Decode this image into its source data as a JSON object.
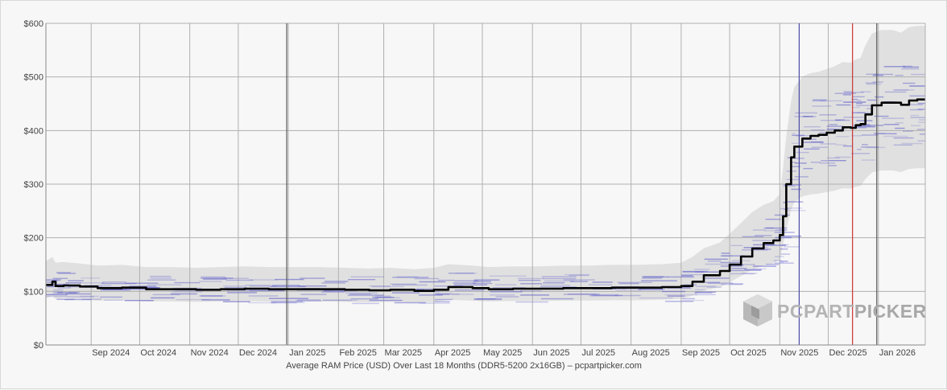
{
  "chart_data": {
    "type": "line",
    "caption": "Average RAM Price (USD) Over Last 18 Months (DDR5-5200 2x16GB) – pcpartpicker.com",
    "y_ticks": [
      "$0",
      "$100",
      "$200",
      "$300",
      "$400",
      "$500",
      "$600"
    ],
    "ylim": [
      0,
      600
    ],
    "x_ticks": [
      "Sep 2024",
      "Oct 2024",
      "Nov 2024",
      "Dec 2024",
      "Jan 2025",
      "Feb 2025",
      "Mar 2025",
      "Apr 2025",
      "May 2025",
      "Jun 2025",
      "Jul 2025",
      "Aug 2025",
      "Sep 2025",
      "Oct 2025",
      "Nov 2025",
      "Dec 2025",
      "Jan 2026"
    ],
    "xlim": [
      "2024-08-04",
      "2026-01-30"
    ],
    "grid": true,
    "series": [
      {
        "name": "",
        "color": "#000000",
        "x": [
          "2024-08-04",
          "2024-08-08",
          "2024-08-10",
          "2024-08-15",
          "2024-08-25",
          "2024-09-05",
          "2024-09-20",
          "2024-10-05",
          "2024-10-20",
          "2024-11-05",
          "2024-11-20",
          "2024-12-05",
          "2024-12-20",
          "2025-01-05",
          "2025-01-20",
          "2025-02-05",
          "2025-02-20",
          "2025-03-05",
          "2025-03-20",
          "2025-04-01",
          "2025-04-10",
          "2025-04-25",
          "2025-05-05",
          "2025-05-20",
          "2025-06-05",
          "2025-06-20",
          "2025-07-05",
          "2025-07-20",
          "2025-08-05",
          "2025-08-20",
          "2025-09-01",
          "2025-09-08",
          "2025-09-15",
          "2025-09-25",
          "2025-10-01",
          "2025-10-08",
          "2025-10-15",
          "2025-10-22",
          "2025-10-28",
          "2025-11-01",
          "2025-11-03",
          "2025-11-05",
          "2025-11-08",
          "2025-11-10",
          "2025-11-15",
          "2025-11-20",
          "2025-11-25",
          "2025-11-30",
          "2025-12-05",
          "2025-12-10",
          "2025-12-15",
          "2025-12-18",
          "2025-12-21",
          "2025-12-24",
          "2025-12-28",
          "2026-01-03",
          "2026-01-10",
          "2026-01-15",
          "2026-01-20",
          "2026-01-25",
          "2026-01-30"
        ],
        "values": [
          112,
          118,
          110,
          111,
          109,
          106,
          107,
          104,
          104,
          103,
          104,
          105,
          104,
          104,
          104,
          103,
          102,
          103,
          101,
          103,
          108,
          106,
          104,
          105,
          105,
          106,
          106,
          107,
          107,
          108,
          110,
          118,
          130,
          138,
          150,
          165,
          180,
          190,
          195,
          205,
          240,
          300,
          350,
          370,
          385,
          390,
          392,
          396,
          400,
          406,
          405,
          410,
          412,
          430,
          447,
          452,
          452,
          448,
          456,
          458,
          458
        ]
      }
    ],
    "range_color": "#d8d8d8",
    "retailer_color": "#6666cc",
    "markers": [
      {
        "date": "2024-12-31",
        "color": "#555555"
      },
      {
        "date": "2025-11-13",
        "color": "#4a4aa8"
      },
      {
        "date": "2025-12-16",
        "color": "#cc3333"
      },
      {
        "date": "2025-12-31",
        "color": "#555555"
      }
    ]
  },
  "logo": {
    "name": "pcpartpicker-logo-icon",
    "text_part1": "PCPART",
    "text_part2": "PICKER",
    "color": "#b4b4b4"
  }
}
